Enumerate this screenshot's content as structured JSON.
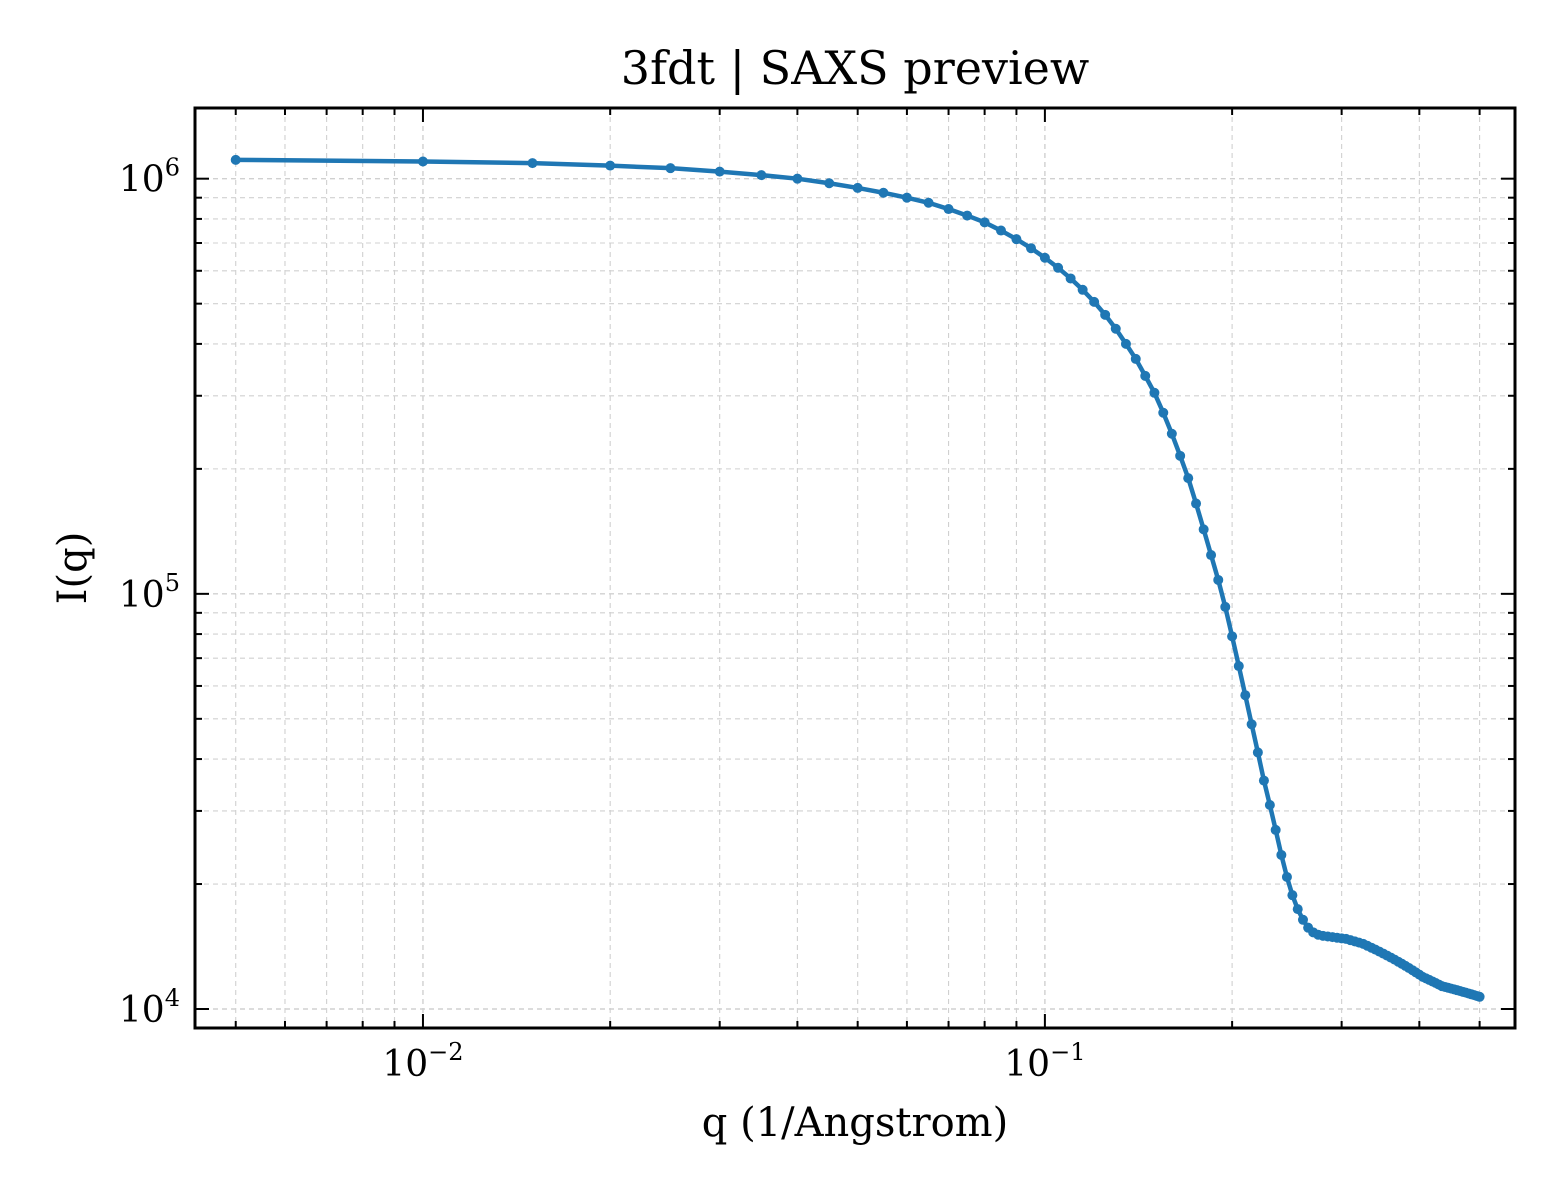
{
  "chart_data": {
    "type": "line",
    "title": "3fdt | SAXS preview",
    "xlabel": "q (1/Angstrom)",
    "ylabel": "I(q)",
    "x_scale": "log",
    "y_scale": "log",
    "xlim": [
      0.0043,
      0.57
    ],
    "ylim": [
      9000,
      1480000
    ],
    "grid": true,
    "legend": "none",
    "x_tick_labels": [
      {
        "value": 0.01,
        "base": "10",
        "exp": "−2"
      },
      {
        "value": 0.1,
        "base": "10",
        "exp": "−1"
      }
    ],
    "y_tick_labels": [
      {
        "value": 10000,
        "base": "10",
        "exp": "4"
      },
      {
        "value": 100000,
        "base": "10",
        "exp": "5"
      },
      {
        "value": 1000000,
        "base": "10",
        "exp": "6"
      }
    ],
    "series": [
      {
        "color": "#1f77b4",
        "markers": true,
        "x": [
          0.005,
          0.01,
          0.015,
          0.02,
          0.025,
          0.03,
          0.035,
          0.04,
          0.045,
          0.05,
          0.055,
          0.06,
          0.065,
          0.07,
          0.075,
          0.08,
          0.085,
          0.09,
          0.095,
          0.1,
          0.105,
          0.11,
          0.115,
          0.12,
          0.125,
          0.13,
          0.135,
          0.14,
          0.145,
          0.15,
          0.155,
          0.16,
          0.165,
          0.17,
          0.175,
          0.18,
          0.185,
          0.19,
          0.195,
          0.2,
          0.205,
          0.21,
          0.215,
          0.22,
          0.225,
          0.23,
          0.235,
          0.24,
          0.245,
          0.25,
          0.255,
          0.26,
          0.265,
          0.27,
          0.275,
          0.28,
          0.285,
          0.29,
          0.295,
          0.3,
          0.305,
          0.31,
          0.315,
          0.32,
          0.325,
          0.33,
          0.335,
          0.34,
          0.345,
          0.35,
          0.355,
          0.36,
          0.365,
          0.37,
          0.375,
          0.38,
          0.385,
          0.39,
          0.395,
          0.4,
          0.405,
          0.41,
          0.415,
          0.42,
          0.425,
          0.43,
          0.435,
          0.44,
          0.445,
          0.45,
          0.455,
          0.46,
          0.465,
          0.47,
          0.475,
          0.48,
          0.485,
          0.49,
          0.495,
          0.5
        ],
        "y": [
          1110000,
          1100000,
          1090000,
          1075000,
          1060000,
          1040000,
          1020000,
          1000000,
          975000,
          950000,
          925000,
          900000,
          875000,
          845000,
          815000,
          785000,
          750000,
          715000,
          680000,
          645000,
          610000,
          575000,
          540000,
          505000,
          470000,
          435000,
          400000,
          368000,
          335000,
          305000,
          273000,
          243000,
          215000,
          190000,
          165000,
          143000,
          124000,
          108000,
          93000,
          79000,
          67000,
          57000,
          48500,
          41500,
          35500,
          31000,
          27000,
          23500,
          20800,
          18800,
          17400,
          16400,
          15700,
          15300,
          15100,
          15000,
          14950,
          14900,
          14850,
          14800,
          14750,
          14650,
          14550,
          14450,
          14350,
          14200,
          14050,
          13900,
          13750,
          13600,
          13450,
          13300,
          13150,
          13000,
          12850,
          12700,
          12550,
          12400,
          12250,
          12100,
          11950,
          11850,
          11750,
          11650,
          11550,
          11450,
          11350,
          11300,
          11250,
          11200,
          11150,
          11100,
          11050,
          11000,
          10950,
          10900,
          10850,
          10800,
          10750,
          10700
        ]
      }
    ]
  }
}
